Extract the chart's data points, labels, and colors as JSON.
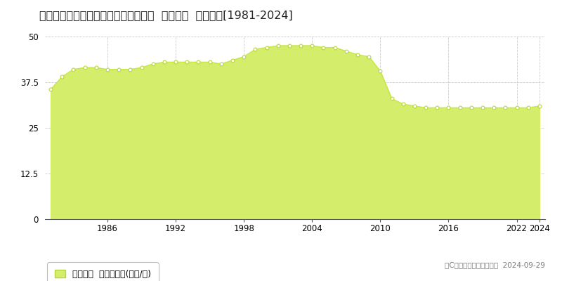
{
  "title": "高知県高知市赤石町字ミドロ８８番４  基準地価  地価推移[1981-2024]",
  "years": [
    1981,
    1982,
    1983,
    1984,
    1985,
    1986,
    1987,
    1988,
    1989,
    1990,
    1991,
    1992,
    1993,
    1994,
    1995,
    1996,
    1997,
    1998,
    1999,
    2000,
    2001,
    2002,
    2003,
    2004,
    2005,
    2006,
    2007,
    2008,
    2009,
    2010,
    2011,
    2012,
    2013,
    2014,
    2015,
    2016,
    2017,
    2018,
    2019,
    2020,
    2021,
    2022,
    2023,
    2024
  ],
  "values": [
    35.5,
    39.0,
    41.0,
    41.5,
    41.5,
    41.0,
    41.0,
    41.0,
    41.5,
    42.5,
    43.0,
    43.0,
    43.0,
    43.0,
    43.0,
    42.5,
    43.5,
    44.5,
    46.5,
    47.0,
    47.5,
    47.5,
    47.5,
    47.5,
    47.0,
    47.0,
    46.0,
    45.0,
    44.5,
    40.5,
    33.0,
    31.5,
    31.0,
    30.5,
    30.5,
    30.5,
    30.5,
    30.5,
    30.5,
    30.5,
    30.5,
    30.5,
    30.5,
    31.0
  ],
  "line_color": "#c8e64c",
  "fill_color": "#d4ed6a",
  "marker_facecolor": "#ffffff",
  "marker_edgecolor": "#b8d63c",
  "background_color": "#ffffff",
  "grid_color": "#cccccc",
  "ylim": [
    0,
    50
  ],
  "yticks": [
    0,
    12.5,
    25,
    37.5,
    50
  ],
  "xtick_years": [
    1986,
    1992,
    1998,
    2004,
    2010,
    2016,
    2022,
    2024
  ],
  "legend_label": "基準地価  平均坪単価(万円/坪)",
  "copyright_text": "（C）土地価格ドットコム  2024-09-29",
  "title_fontsize": 11.5,
  "legend_fontsize": 9,
  "tick_fontsize": 8.5,
  "axis_color": "#555555"
}
